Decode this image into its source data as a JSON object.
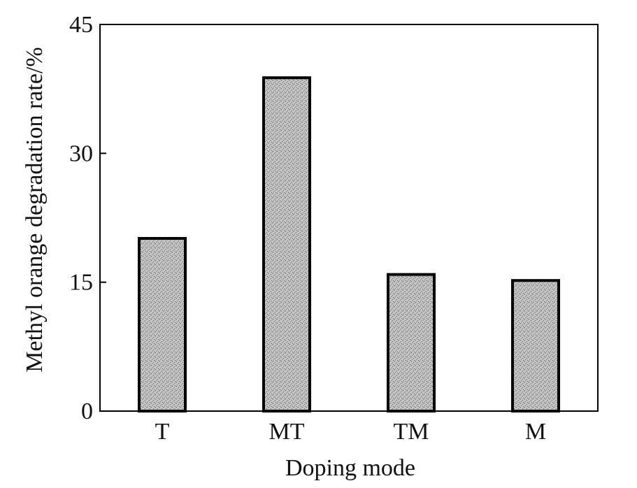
{
  "chart_data": {
    "type": "bar",
    "title": "",
    "xlabel": "Doping mode",
    "ylabel": "Methyl orange degradation rate/%",
    "categories": [
      "T",
      "MT",
      "TM",
      "M"
    ],
    "values": [
      20.1,
      38.8,
      15.9,
      15.2
    ],
    "ylim": [
      0,
      45
    ],
    "yticks": [
      0,
      15,
      30,
      45
    ],
    "grid": false,
    "bar_fill": "#b8b8b8",
    "bar_stroke": "#000000"
  }
}
